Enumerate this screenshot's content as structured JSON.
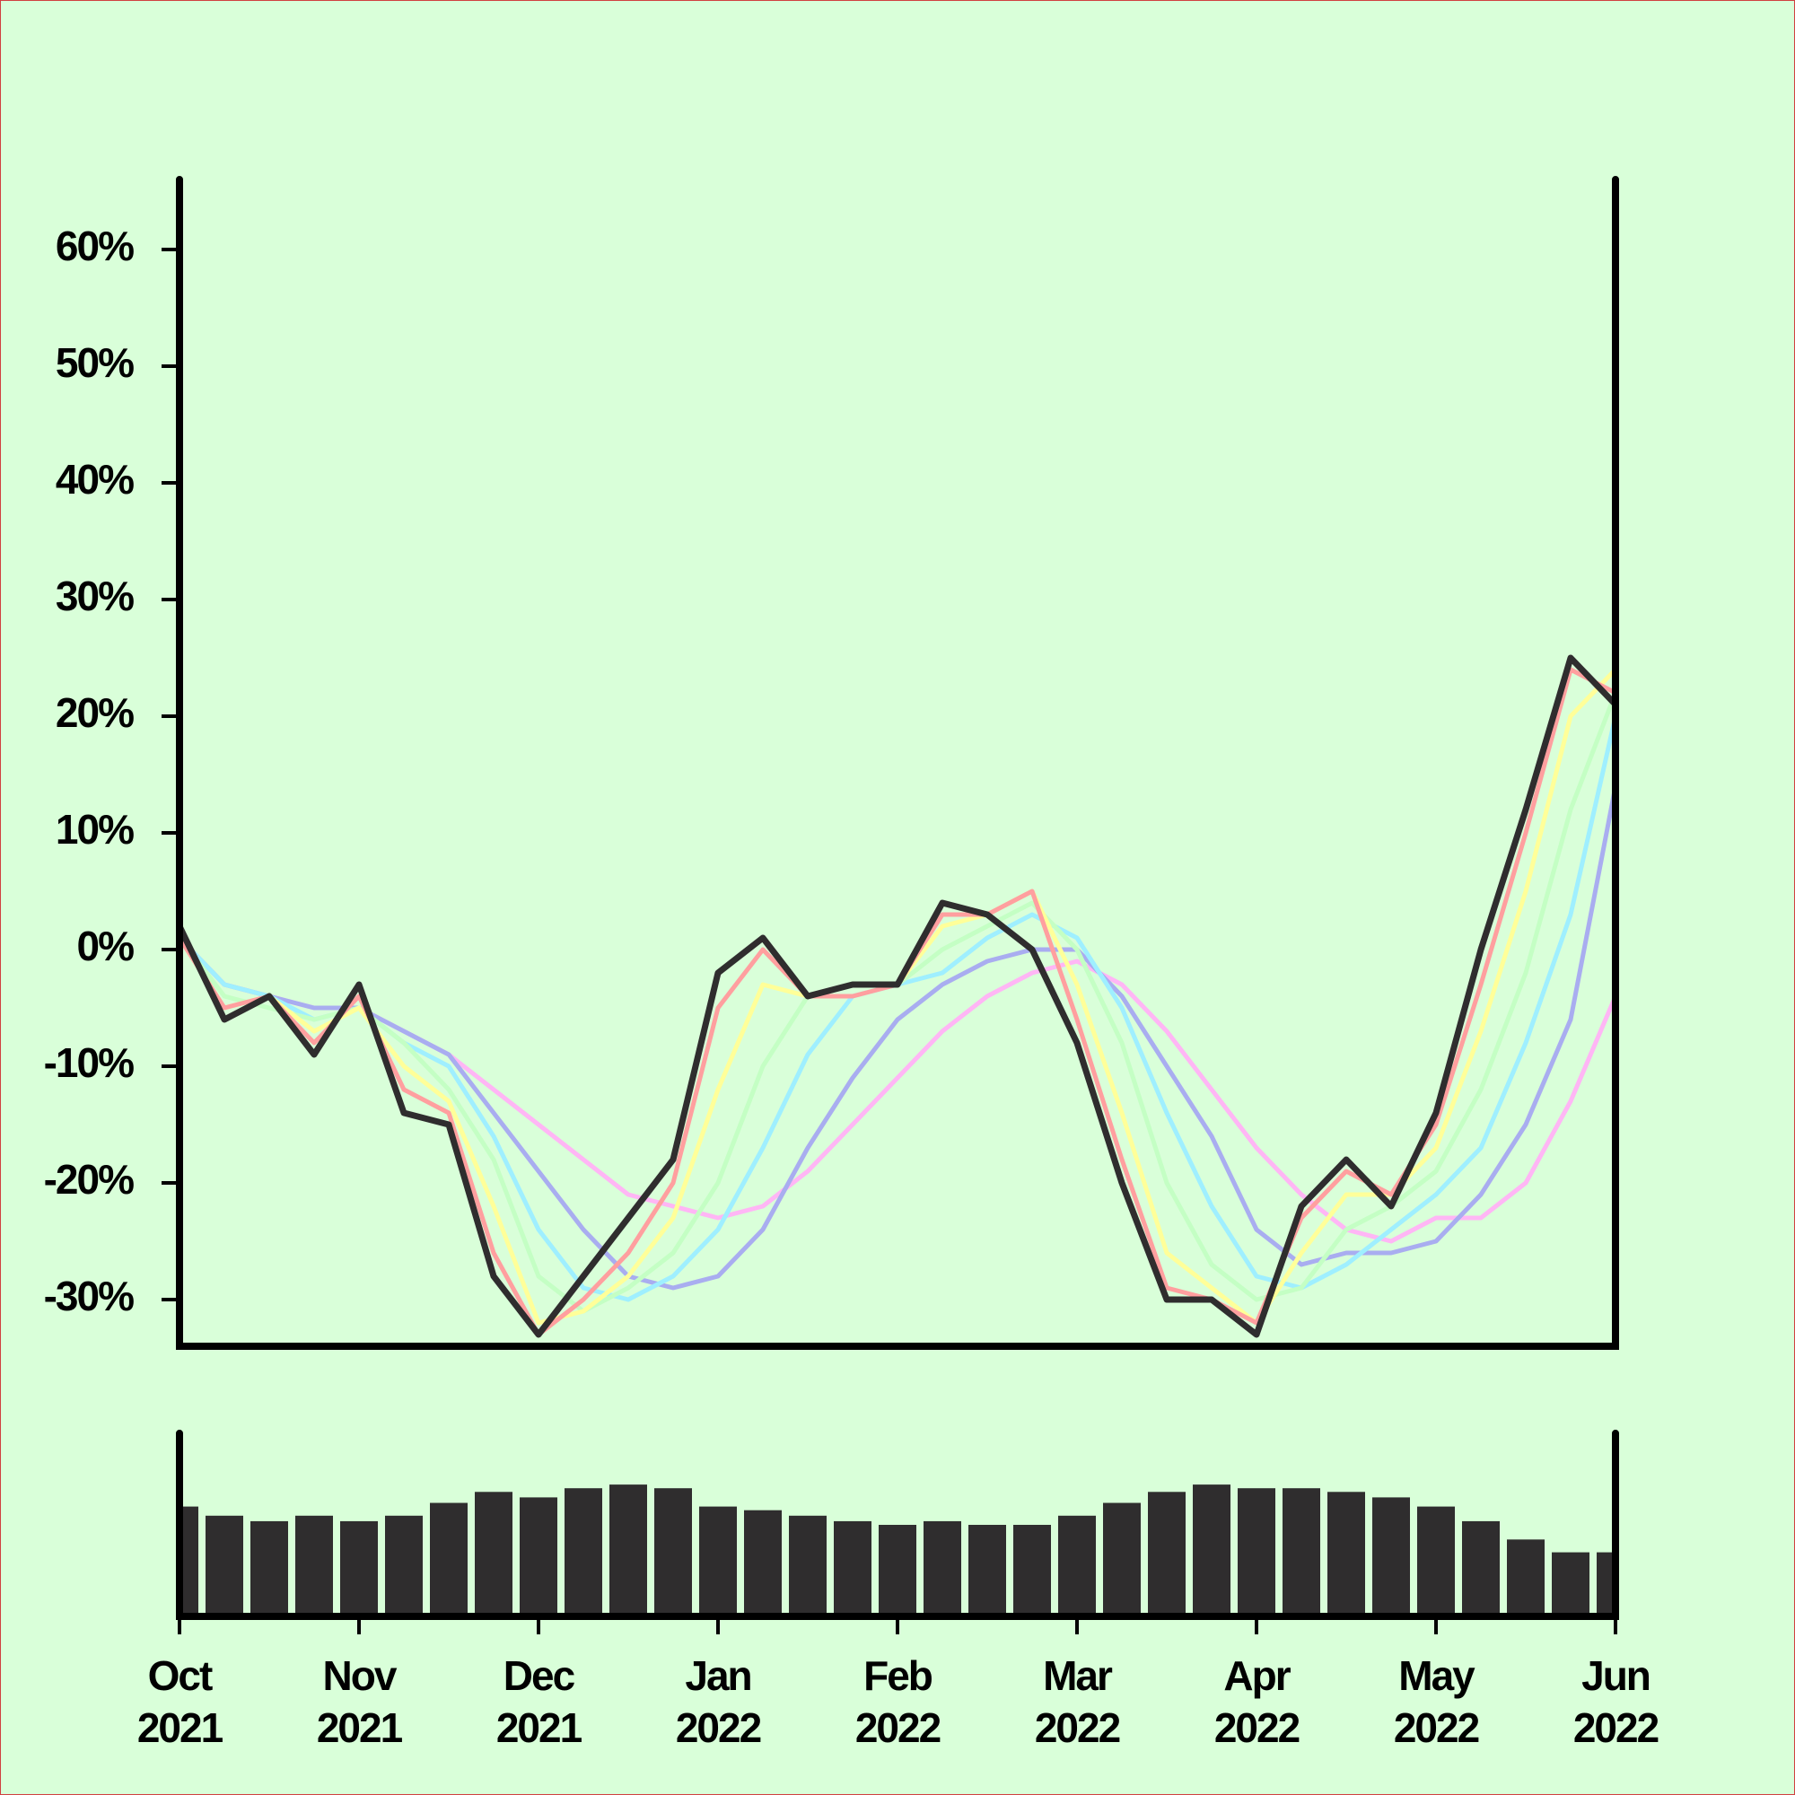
{
  "chart_data": [
    {
      "type": "line",
      "x": [
        0,
        0.25,
        0.5,
        0.75,
        1,
        1.25,
        1.5,
        1.75,
        2,
        2.25,
        2.5,
        2.75,
        3,
        3.25,
        3.5,
        3.75,
        4,
        4.25,
        4.5,
        4.75,
        5,
        5.25,
        5.5,
        5.75,
        6,
        6.25,
        6.5,
        6.75,
        7,
        7.25,
        7.5,
        7.75,
        8
      ],
      "xlim": [
        0,
        8
      ],
      "ylim": [
        -34,
        66
      ],
      "yticks": [
        {
          "value": -30,
          "label": "-30%"
        },
        {
          "value": -20,
          "label": "-20%"
        },
        {
          "value": -10,
          "label": "-10%"
        },
        {
          "value": 0,
          "label": "0%"
        },
        {
          "value": 10,
          "label": "10%"
        },
        {
          "value": 20,
          "label": "20%"
        },
        {
          "value": 30,
          "label": "30%"
        },
        {
          "value": 40,
          "label": "40%"
        },
        {
          "value": 50,
          "label": "50%"
        },
        {
          "value": 60,
          "label": "60%"
        }
      ],
      "series": [
        {
          "color": "#ffb6f5",
          "values": [
            1,
            -3,
            -4,
            -5,
            -5,
            -7,
            -9,
            -12,
            -15,
            -18,
            -21,
            -22,
            -23,
            -22,
            -19,
            -15,
            -11,
            -7,
            -4,
            -2,
            -1,
            -3,
            -7,
            -12,
            -17,
            -21,
            -24,
            -25,
            -23,
            -23,
            -20,
            -13,
            -4
          ]
        },
        {
          "color": "#a9adf0",
          "values": [
            1,
            -3,
            -4,
            -5,
            -5,
            -7,
            -9,
            -14,
            -19,
            -24,
            -28,
            -29,
            -28,
            -24,
            -17,
            -11,
            -6,
            -3,
            -1,
            0,
            0,
            -4,
            -10,
            -16,
            -24,
            -27,
            -26,
            -26,
            -25,
            -21,
            -15,
            -6,
            14
          ]
        },
        {
          "color": "#9fefff",
          "values": [
            1,
            -3,
            -4,
            -6,
            -5,
            -8,
            -10,
            -16,
            -24,
            -29,
            -30,
            -28,
            -24,
            -17,
            -9,
            -4,
            -3,
            -2,
            1,
            3,
            1,
            -5,
            -14,
            -22,
            -28,
            -29,
            -27,
            -24,
            -21,
            -17,
            -8,
            3,
            20
          ]
        },
        {
          "color": "#c4ffc4",
          "values": [
            1,
            -4,
            -5,
            -6,
            -5,
            -8,
            -12,
            -18,
            -28,
            -31,
            -29,
            -26,
            -20,
            -10,
            -4,
            -3,
            -3,
            0,
            2,
            4,
            0,
            -8,
            -20,
            -27,
            -30,
            -29,
            -24,
            -22,
            -19,
            -12,
            -2,
            12,
            22
          ]
        },
        {
          "color": "#ffff99",
          "values": [
            1,
            -5,
            -4,
            -7,
            -5,
            -10,
            -13,
            -22,
            -32,
            -31,
            -28,
            -23,
            -12,
            -3,
            -4,
            -3,
            -3,
            2,
            3,
            5,
            -3,
            -14,
            -26,
            -29,
            -32,
            -26,
            -21,
            -21,
            -17,
            -7,
            5,
            20,
            24
          ]
        },
        {
          "color": "#ff9f9f",
          "values": [
            1,
            -5,
            -4,
            -8,
            -4,
            -12,
            -14,
            -26,
            -33,
            -30,
            -26,
            -20,
            -5,
            0,
            -4,
            -4,
            -3,
            3,
            3,
            5,
            -6,
            -18,
            -29,
            -30,
            -32,
            -23,
            -19,
            -21,
            -15,
            -3,
            10,
            24,
            22
          ]
        },
        {
          "color": "#2f2d2e",
          "values": [
            2,
            -6,
            -4,
            -9,
            -3,
            -14,
            -15,
            -28,
            -33,
            -28,
            -23,
            -18,
            -2,
            1,
            -4,
            -3,
            -3,
            4,
            3,
            0,
            -8,
            -20,
            -30,
            -30,
            -33,
            -22,
            -18,
            -22,
            -14,
            0,
            12,
            25,
            21
          ]
        }
      ]
    },
    {
      "type": "bar",
      "x": [
        0,
        0.25,
        0.5,
        0.75,
        1,
        1.25,
        1.5,
        1.75,
        2,
        2.25,
        2.5,
        2.75,
        3,
        3.25,
        3.5,
        3.75,
        4,
        4.25,
        4.5,
        4.75,
        5,
        5.25,
        5.5,
        5.75,
        6,
        6.25,
        6.5,
        6.75,
        7,
        7.25,
        7.5,
        7.75,
        8
      ],
      "values": [
        60,
        55,
        52,
        55,
        52,
        55,
        62,
        68,
        65,
        70,
        72,
        70,
        60,
        58,
        55,
        52,
        50,
        52,
        50,
        50,
        55,
        62,
        68,
        72,
        70,
        70,
        68,
        65,
        60,
        52,
        42,
        35,
        35
      ],
      "color": "#2f2d2e",
      "xlim": [
        0,
        8
      ],
      "ylim": [
        0,
        100
      ],
      "xticks": [
        {
          "value": 0,
          "label": "Oct 2021"
        },
        {
          "value": 1,
          "label": "Nov 2021"
        },
        {
          "value": 2,
          "label": "Dec 2021"
        },
        {
          "value": 3,
          "label": "Jan 2022"
        },
        {
          "value": 4,
          "label": "Feb 2022"
        },
        {
          "value": 5,
          "label": "Mar 2022"
        },
        {
          "value": 6,
          "label": "Apr 2022"
        },
        {
          "value": 7,
          "label": "May 2022"
        },
        {
          "value": 8,
          "label": "Jun 2022"
        }
      ]
    }
  ]
}
